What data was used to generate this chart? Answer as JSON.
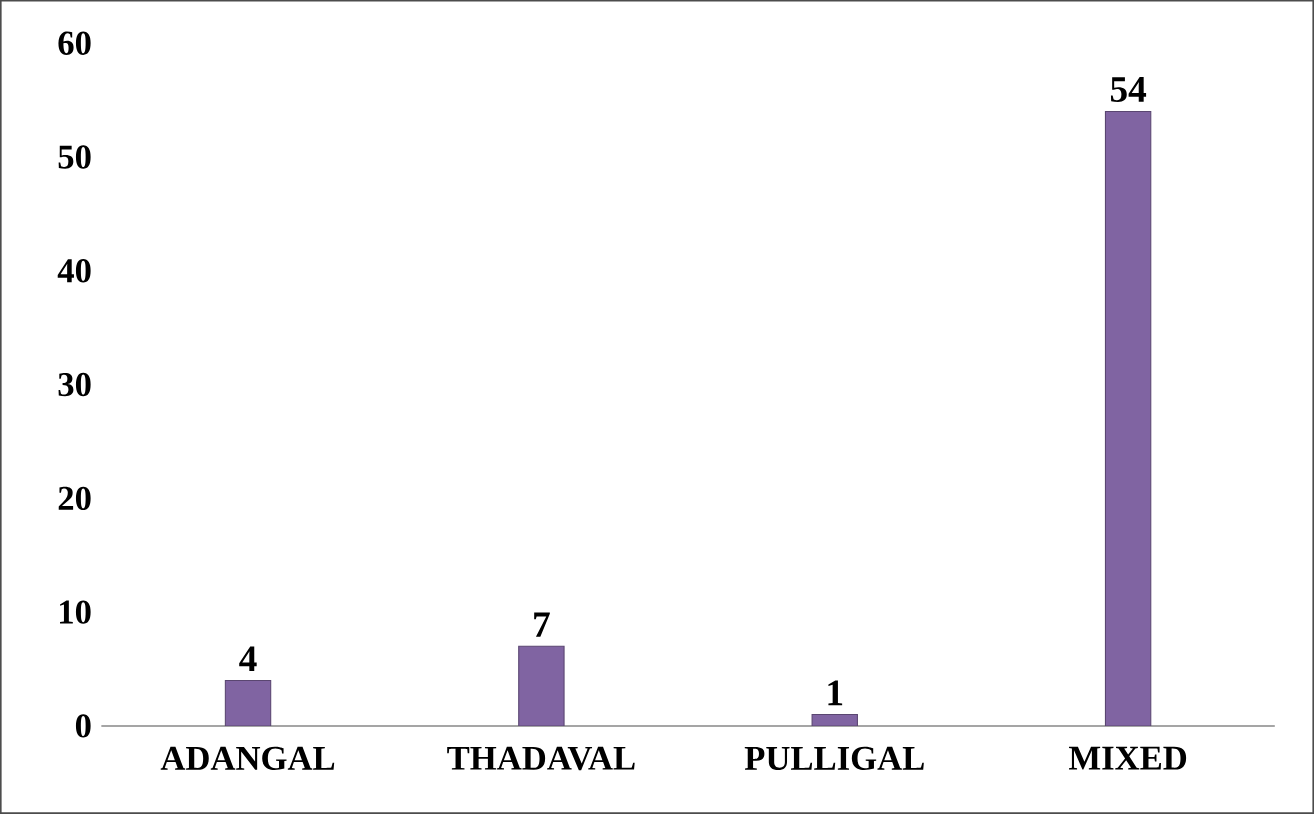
{
  "chart_data": {
    "type": "bar",
    "categories": [
      "ADANGAL",
      "THADAVAL",
      "PULLIGAL",
      "MIXED"
    ],
    "values": [
      4,
      7,
      1,
      54
    ],
    "color": "#8064a2",
    "ylim": [
      0,
      60
    ],
    "yticks": [
      0,
      10,
      20,
      30,
      40,
      50,
      60
    ],
    "data_labels": true,
    "grid": false
  }
}
